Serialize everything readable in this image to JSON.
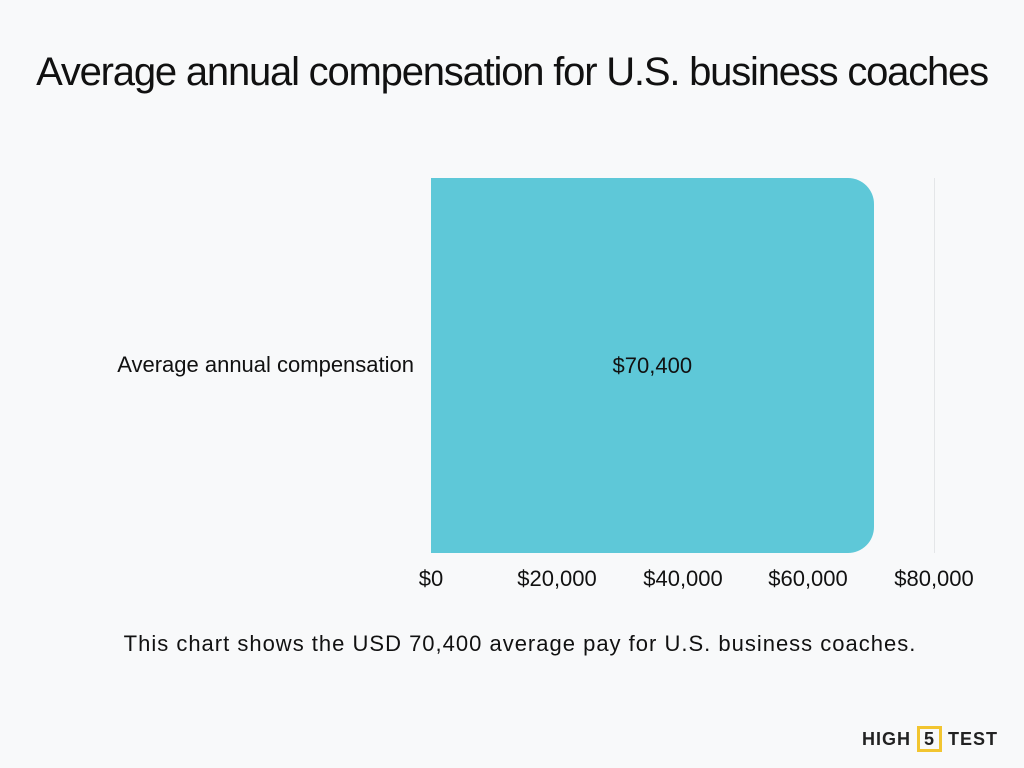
{
  "title": "Average annual compensation for U.S. business coaches",
  "caption": "This chart shows the USD 70,400 average pay for U.S. business coaches.",
  "logo": {
    "left": "HIGH",
    "middle": "5",
    "right": "TEST"
  },
  "colors": {
    "bar": "#5ec8d8",
    "background": "#f8f9fa",
    "logo_accent": "#f2c530"
  },
  "chart_data": {
    "type": "bar",
    "orientation": "horizontal",
    "title": "Average annual compensation for U.S. business coaches",
    "categories": [
      "Average annual compensation"
    ],
    "values": [
      70400
    ],
    "value_labels": [
      "$70,400"
    ],
    "xlabel": "",
    "ylabel": "",
    "xlim": [
      0,
      80000
    ],
    "x_ticks": [
      "$0",
      "$20,000",
      "$40,000",
      "$60,000",
      "$80,000"
    ],
    "grid": false,
    "legend": null
  }
}
